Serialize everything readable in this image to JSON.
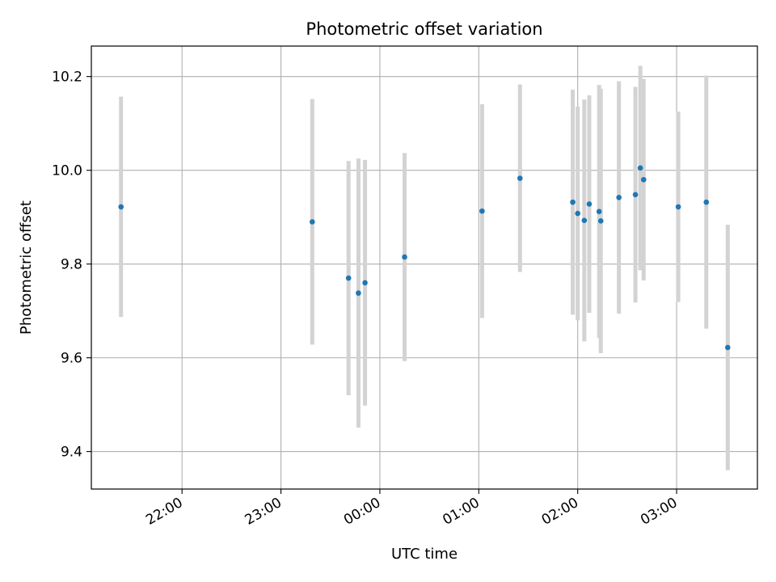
{
  "chart_data": {
    "type": "scatter",
    "title": "Photometric offset variation",
    "xlabel": "UTC time",
    "ylabel": "Photometric offset",
    "grid": true,
    "xlim": [
      "21:05",
      "03:49"
    ],
    "ylim": [
      9.32,
      10.265
    ],
    "x_ticks": [
      "22:00",
      "23:00",
      "00:00",
      "01:00",
      "02:00",
      "03:00"
    ],
    "y_ticks": [
      "9.4",
      "9.6",
      "9.8",
      "10.0",
      "10.2"
    ],
    "colors": {
      "point": "#1f77b4",
      "errorbar": "#d3d3d3",
      "grid": "#b0b0b0"
    },
    "series": [
      {
        "points": [
          {
            "x": "21:23",
            "y": 9.922,
            "err": 0.235
          },
          {
            "x": "23:19",
            "y": 9.89,
            "err": 0.262
          },
          {
            "x": "23:41",
            "y": 9.77,
            "err": 0.25
          },
          {
            "x": "23:47",
            "y": 9.738,
            "err": 0.287
          },
          {
            "x": "23:51",
            "y": 9.76,
            "err": 0.262
          },
          {
            "x": "00:15",
            "y": 9.815,
            "err": 0.222
          },
          {
            "x": "01:02",
            "y": 9.913,
            "err": 0.228
          },
          {
            "x": "01:25",
            "y": 9.983,
            "err": 0.2
          },
          {
            "x": "01:57",
            "y": 9.932,
            "err": 0.24
          },
          {
            "x": "02:00",
            "y": 9.908,
            "err": 0.228
          },
          {
            "x": "02:04",
            "y": 9.893,
            "err": 0.258
          },
          {
            "x": "02:07",
            "y": 9.928,
            "err": 0.232
          },
          {
            "x": "02:13",
            "y": 9.912,
            "err": 0.27
          },
          {
            "x": "02:14",
            "y": 9.892,
            "err": 0.282
          },
          {
            "x": "02:25",
            "y": 9.942,
            "err": 0.248
          },
          {
            "x": "02:35",
            "y": 9.948,
            "err": 0.23
          },
          {
            "x": "02:38",
            "y": 10.005,
            "err": 0.218
          },
          {
            "x": "02:40",
            "y": 9.98,
            "err": 0.215
          },
          {
            "x": "03:01",
            "y": 9.922,
            "err": 0.203
          },
          {
            "x": "03:18",
            "y": 9.932,
            "err": 0.27
          },
          {
            "x": "03:31",
            "y": 9.622,
            "err": 0.262
          }
        ]
      }
    ]
  }
}
